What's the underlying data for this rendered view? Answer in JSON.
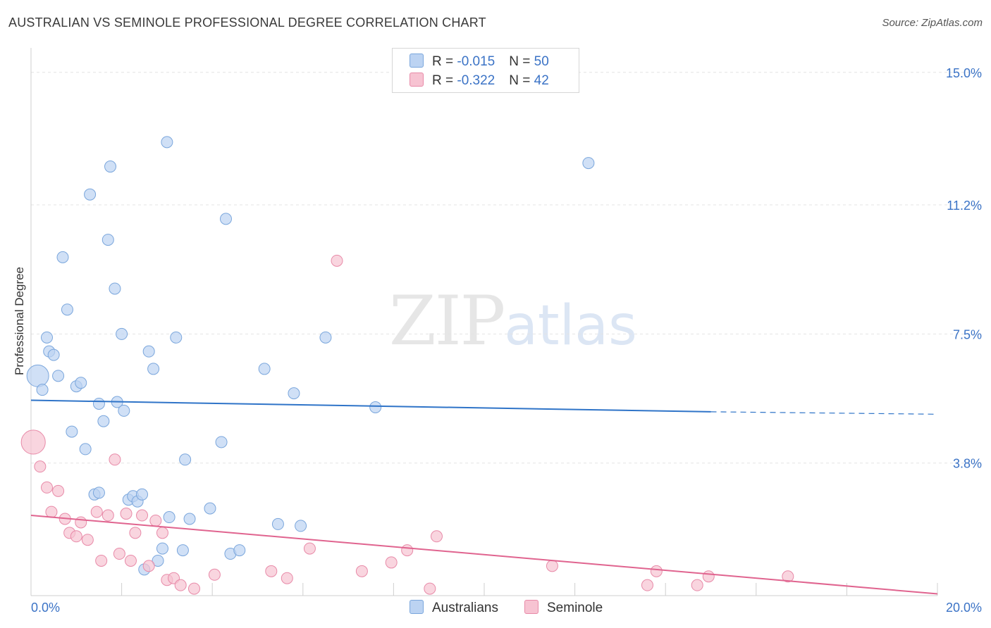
{
  "title": "AUSTRALIAN VS SEMINOLE PROFESSIONAL DEGREE CORRELATION CHART",
  "source": "Source: ZipAtlas.com",
  "colors": {
    "australians_fill": "#bcd3f2",
    "australians_stroke": "#7aa6dc",
    "australians_line": "#2f74c8",
    "seminole_fill": "#f7c3d2",
    "seminole_stroke": "#e88aa8",
    "seminole_line": "#e0648f",
    "tick_label": "#3b73c6"
  },
  "legend": {
    "australians": {
      "r_label": "R = ",
      "r_value": "-0.015",
      "n_label": "N = ",
      "n_value": "50"
    },
    "seminole": {
      "r_label": "R = ",
      "r_value": "-0.322",
      "n_label": "N = ",
      "n_value": "42"
    }
  },
  "bottom_legend": {
    "australians": "Australians",
    "seminole": "Seminole"
  },
  "watermark": {
    "zip": "ZIP",
    "atlas": "atlas"
  },
  "chart_data": {
    "type": "scatter",
    "xlabel": "",
    "ylabel": "Professional Degree",
    "xlim": [
      0,
      20
    ],
    "ylim": [
      0,
      15.5
    ],
    "x_tick_labels": [
      {
        "value": 0,
        "label": "0.0%"
      },
      {
        "value": 20,
        "label": "20.0%"
      }
    ],
    "y_tick_labels": [
      {
        "value": 3.8,
        "label": "3.8%"
      },
      {
        "value": 7.5,
        "label": "7.5%"
      },
      {
        "value": 11.2,
        "label": "11.2%"
      },
      {
        "value": 15.0,
        "label": "15.0%"
      }
    ],
    "grid": true,
    "series": [
      {
        "name": "Australians",
        "trend": {
          "x": [
            0,
            15
          ],
          "y": [
            5.6,
            5.27
          ],
          "dashed_to": [
            20,
            5.2
          ]
        },
        "points": [
          [
            0.15,
            6.3,
            10
          ],
          [
            0.25,
            5.9,
            8
          ],
          [
            0.35,
            7.4,
            8
          ],
          [
            0.4,
            7.0,
            8
          ],
          [
            0.5,
            6.9,
            8
          ],
          [
            0.6,
            6.3,
            8
          ],
          [
            0.7,
            9.7,
            8
          ],
          [
            0.8,
            8.2,
            8
          ],
          [
            0.9,
            4.7,
            8
          ],
          [
            1.0,
            6.0,
            8
          ],
          [
            1.1,
            6.1,
            8
          ],
          [
            1.2,
            4.2,
            8
          ],
          [
            1.3,
            11.5,
            8
          ],
          [
            1.4,
            2.9,
            8
          ],
          [
            1.5,
            5.5,
            8
          ],
          [
            1.5,
            2.95,
            8
          ],
          [
            1.6,
            5.0,
            8
          ],
          [
            1.7,
            10.2,
            8
          ],
          [
            1.75,
            12.3,
            8
          ],
          [
            1.85,
            8.8,
            8
          ],
          [
            1.9,
            5.55,
            8
          ],
          [
            2.0,
            7.5,
            8
          ],
          [
            2.05,
            5.3,
            8
          ],
          [
            2.15,
            2.75,
            8
          ],
          [
            2.25,
            2.85,
            8
          ],
          [
            2.35,
            2.7,
            8
          ],
          [
            2.45,
            2.9,
            8
          ],
          [
            2.5,
            0.75,
            8
          ],
          [
            2.6,
            7.0,
            8
          ],
          [
            2.7,
            6.5,
            8
          ],
          [
            2.8,
            1.0,
            8
          ],
          [
            2.9,
            1.35,
            8
          ],
          [
            3.0,
            13.0,
            8
          ],
          [
            3.05,
            2.25,
            8
          ],
          [
            3.2,
            7.4,
            8
          ],
          [
            3.35,
            1.3,
            8
          ],
          [
            3.4,
            3.9,
            8
          ],
          [
            3.5,
            2.2,
            8
          ],
          [
            3.95,
            2.5,
            8
          ],
          [
            4.2,
            4.4,
            8
          ],
          [
            4.3,
            10.8,
            8
          ],
          [
            4.4,
            1.2,
            8
          ],
          [
            4.6,
            1.3,
            8
          ],
          [
            5.15,
            6.5,
            8
          ],
          [
            5.45,
            2.05,
            8
          ],
          [
            5.8,
            5.8,
            8
          ],
          [
            5.95,
            2.0,
            8
          ],
          [
            6.5,
            7.4,
            8
          ],
          [
            7.6,
            5.4,
            8
          ],
          [
            12.3,
            12.4,
            8
          ]
        ]
      },
      {
        "name": "Seminole",
        "trend": {
          "x": [
            0,
            20
          ],
          "y": [
            2.3,
            0.05
          ]
        },
        "points": [
          [
            0.05,
            4.4,
            11
          ],
          [
            0.2,
            3.7,
            8
          ],
          [
            0.35,
            3.1,
            8
          ],
          [
            0.45,
            2.4,
            8
          ],
          [
            0.6,
            3.0,
            8
          ],
          [
            0.75,
            2.2,
            8
          ],
          [
            0.85,
            1.8,
            8
          ],
          [
            1.0,
            1.7,
            8
          ],
          [
            1.1,
            2.1,
            8
          ],
          [
            1.25,
            1.6,
            8
          ],
          [
            1.45,
            2.4,
            8
          ],
          [
            1.55,
            1.0,
            8
          ],
          [
            1.7,
            2.3,
            8
          ],
          [
            1.85,
            3.9,
            8
          ],
          [
            1.95,
            1.2,
            8
          ],
          [
            2.1,
            2.35,
            8
          ],
          [
            2.2,
            1.0,
            8
          ],
          [
            2.3,
            1.8,
            8
          ],
          [
            2.45,
            2.3,
            8
          ],
          [
            2.6,
            0.85,
            8
          ],
          [
            2.75,
            2.15,
            8
          ],
          [
            2.9,
            1.8,
            8
          ],
          [
            3.0,
            0.45,
            8
          ],
          [
            3.15,
            0.5,
            8
          ],
          [
            3.3,
            0.3,
            8
          ],
          [
            3.6,
            0.2,
            8
          ],
          [
            4.05,
            0.6,
            8
          ],
          [
            5.3,
            0.7,
            8
          ],
          [
            5.65,
            0.5,
            8
          ],
          [
            6.75,
            9.6,
            8
          ],
          [
            7.3,
            0.7,
            8
          ],
          [
            7.95,
            0.95,
            8
          ],
          [
            8.3,
            1.3,
            8
          ],
          [
            8.8,
            0.2,
            8
          ],
          [
            8.95,
            1.7,
            8
          ],
          [
            11.5,
            0.85,
            8
          ],
          [
            13.6,
            0.3,
            8
          ],
          [
            13.8,
            0.7,
            8
          ],
          [
            14.7,
            0.3,
            8
          ],
          [
            14.95,
            0.55,
            8
          ],
          [
            16.7,
            0.55,
            8
          ],
          [
            6.15,
            1.35,
            8
          ]
        ]
      }
    ]
  }
}
